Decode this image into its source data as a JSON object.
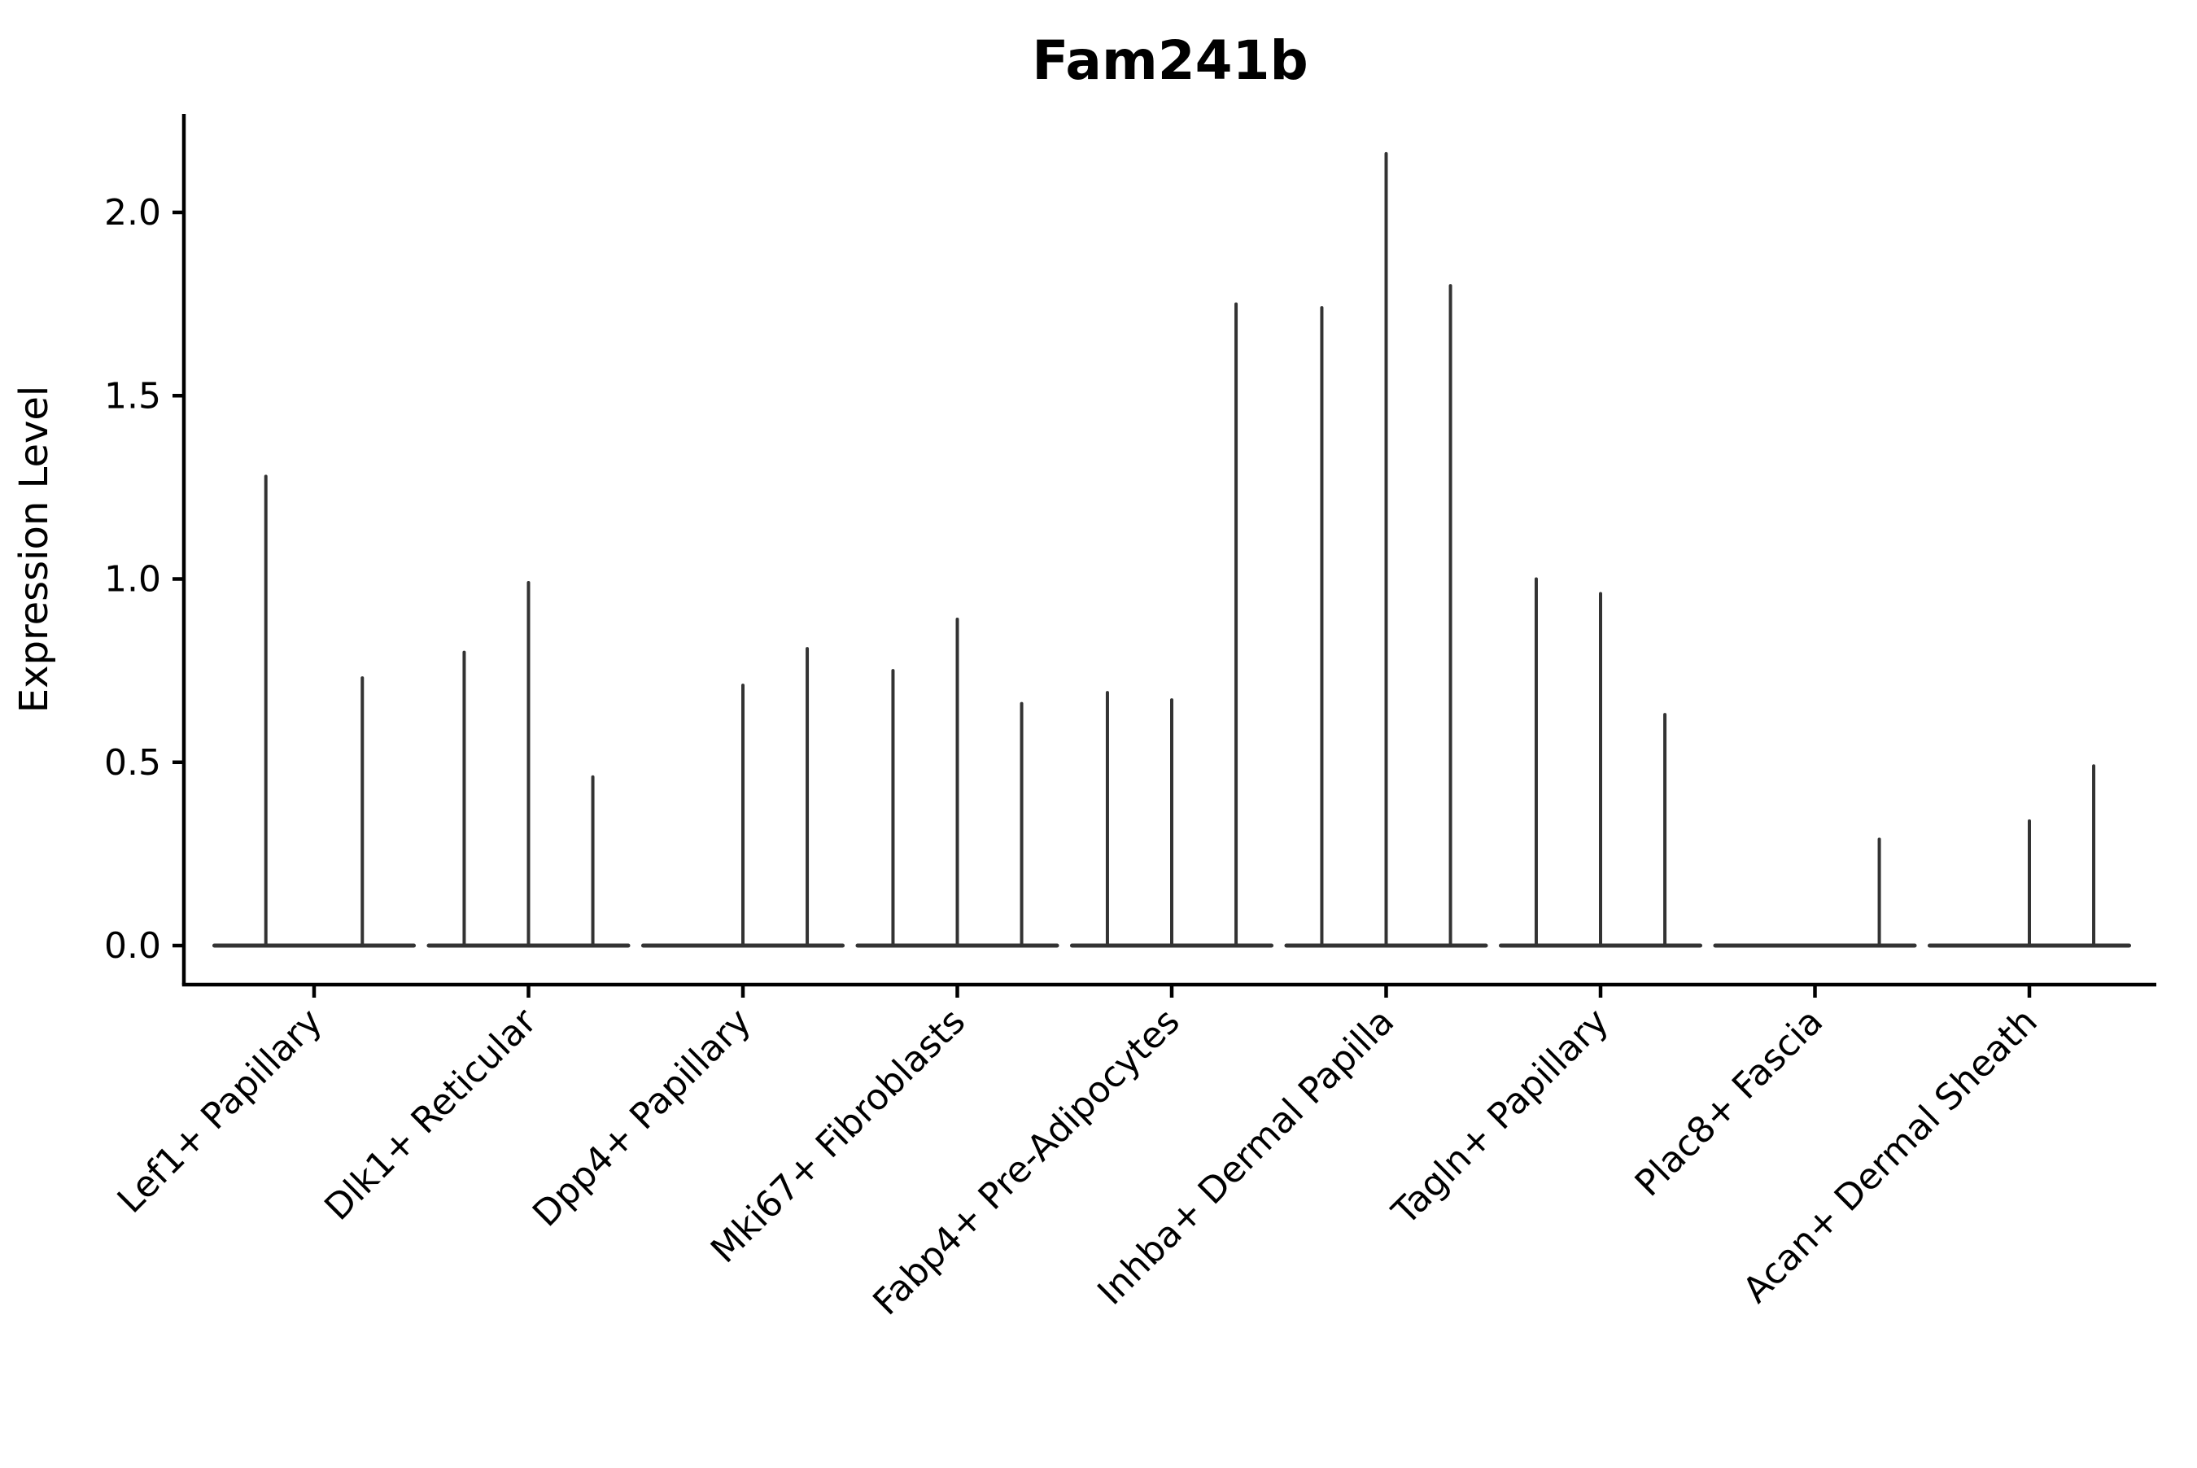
{
  "figure": {
    "background": "#ffffff",
    "line_color": "#333333",
    "spine_color": "#000000",
    "text_color": "#000000"
  },
  "chart_data": {
    "type": "violin",
    "title": "Fam241b",
    "xlabel": "",
    "ylabel": "Expression Level",
    "ytick_values": [
      0.0,
      0.5,
      1.0,
      1.5,
      2.0
    ],
    "ytick_labels": [
      "0.0",
      "0.5",
      "1.0",
      "1.5",
      "2.0"
    ],
    "ylim": [
      -0.11,
      2.27
    ],
    "grid": false,
    "legend": null,
    "x_tick_rotation_deg": 45,
    "categories": [
      "Lef1+ Papillary",
      "Dlk1+ Reticular",
      "Dpp4+ Papillary",
      "Mki67+ Fibroblasts",
      "Fabp4+ Pre-Adipocytes",
      "Inhba+ Dermal Papilla",
      "Tagln+ Papillary",
      "Plac8+ Fascia",
      "Acan+ Dermal Sheath"
    ],
    "baseline_halfwidth": 0.465,
    "groups": [
      {
        "label": "Lef1+ Papillary",
        "violins": [
          {
            "offset": -0.225,
            "max": 1.28
          },
          {
            "offset": 0.225,
            "max": 0.73
          }
        ]
      },
      {
        "label": "Dlk1+ Reticular",
        "violins": [
          {
            "offset": -0.3,
            "max": 0.8
          },
          {
            "offset": 0.0,
            "max": 0.99
          },
          {
            "offset": 0.3,
            "max": 0.46
          }
        ]
      },
      {
        "label": "Dpp4+ Papillary",
        "violins": [
          {
            "offset": -0.3,
            "max": 0.0
          },
          {
            "offset": 0.0,
            "max": 0.71
          },
          {
            "offset": 0.3,
            "max": 0.81
          }
        ]
      },
      {
        "label": "Mki67+ Fibroblasts",
        "violins": [
          {
            "offset": -0.3,
            "max": 0.75
          },
          {
            "offset": 0.0,
            "max": 0.89
          },
          {
            "offset": 0.3,
            "max": 0.66
          }
        ]
      },
      {
        "label": "Fabp4+ Pre-Adipocytes",
        "violins": [
          {
            "offset": -0.3,
            "max": 0.69
          },
          {
            "offset": 0.0,
            "max": 0.67
          },
          {
            "offset": 0.3,
            "max": 1.75
          }
        ]
      },
      {
        "label": "Inhba+ Dermal Papilla",
        "violins": [
          {
            "offset": -0.3,
            "max": 1.74
          },
          {
            "offset": 0.0,
            "max": 2.16
          },
          {
            "offset": 0.3,
            "max": 1.8
          }
        ]
      },
      {
        "label": "Tagln+ Papillary",
        "violins": [
          {
            "offset": -0.3,
            "max": 1.0
          },
          {
            "offset": 0.0,
            "max": 0.96
          },
          {
            "offset": 0.3,
            "max": 0.63
          }
        ]
      },
      {
        "label": "Plac8+ Fascia",
        "violins": [
          {
            "offset": -0.3,
            "max": 0.0
          },
          {
            "offset": 0.0,
            "max": 0.0
          },
          {
            "offset": 0.3,
            "max": 0.29
          }
        ]
      },
      {
        "label": "Acan+ Dermal Sheath",
        "violins": [
          {
            "offset": -0.3,
            "max": 0.0
          },
          {
            "offset": 0.0,
            "max": 0.34
          },
          {
            "offset": 0.3,
            "max": 0.49
          }
        ]
      }
    ]
  }
}
